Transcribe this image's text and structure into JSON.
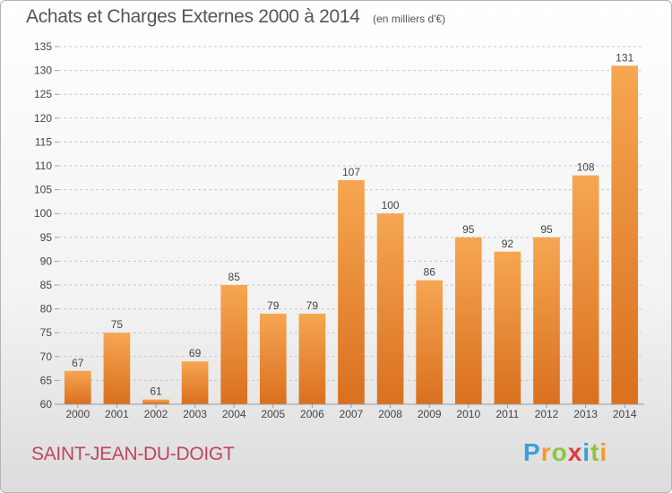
{
  "title": "Achats et Charges Externes 2000 à 2014",
  "unit": "(en milliers d'€)",
  "town": "SAINT-JEAN-DU-DOIGT",
  "brand": {
    "letters": [
      "P",
      "r",
      "o",
      "x",
      "i",
      "t",
      "i"
    ],
    "colors": [
      "#3aa0d8",
      "#f39a2b",
      "#8cc63e",
      "#e23b3b",
      "#3aa0d8",
      "#8cc63e",
      "#f39a2b"
    ]
  },
  "colors": {
    "bar_top": "#f6a652",
    "bar_bottom": "#d9701e",
    "grid": "#c8c8c8",
    "text": "#444444"
  },
  "chart_data": {
    "type": "bar",
    "categories": [
      "2000",
      "2001",
      "2002",
      "2003",
      "2004",
      "2005",
      "2006",
      "2007",
      "2008",
      "2009",
      "2010",
      "2011",
      "2012",
      "2013",
      "2014"
    ],
    "values": [
      67,
      75,
      61,
      69,
      85,
      79,
      79,
      107,
      100,
      86,
      95,
      92,
      95,
      108,
      131
    ],
    "ylim": [
      60,
      135
    ],
    "yticks": [
      60,
      65,
      70,
      75,
      80,
      85,
      90,
      95,
      100,
      105,
      110,
      115,
      120,
      125,
      130,
      135
    ],
    "grid": "horizontal dashed",
    "data_labels": true
  }
}
